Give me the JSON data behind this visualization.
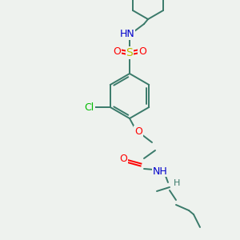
{
  "background_color": "#eef2ee",
  "bond_color": "#3a7a6a",
  "atom_colors": {
    "O": "#ff0000",
    "N": "#0000cc",
    "S": "#bbbb00",
    "Cl": "#00bb00",
    "H": "#3a7a6a",
    "C": "#3a7a6a"
  },
  "font_size": 9,
  "fig_width": 3.0,
  "fig_height": 3.0,
  "dpi": 100
}
